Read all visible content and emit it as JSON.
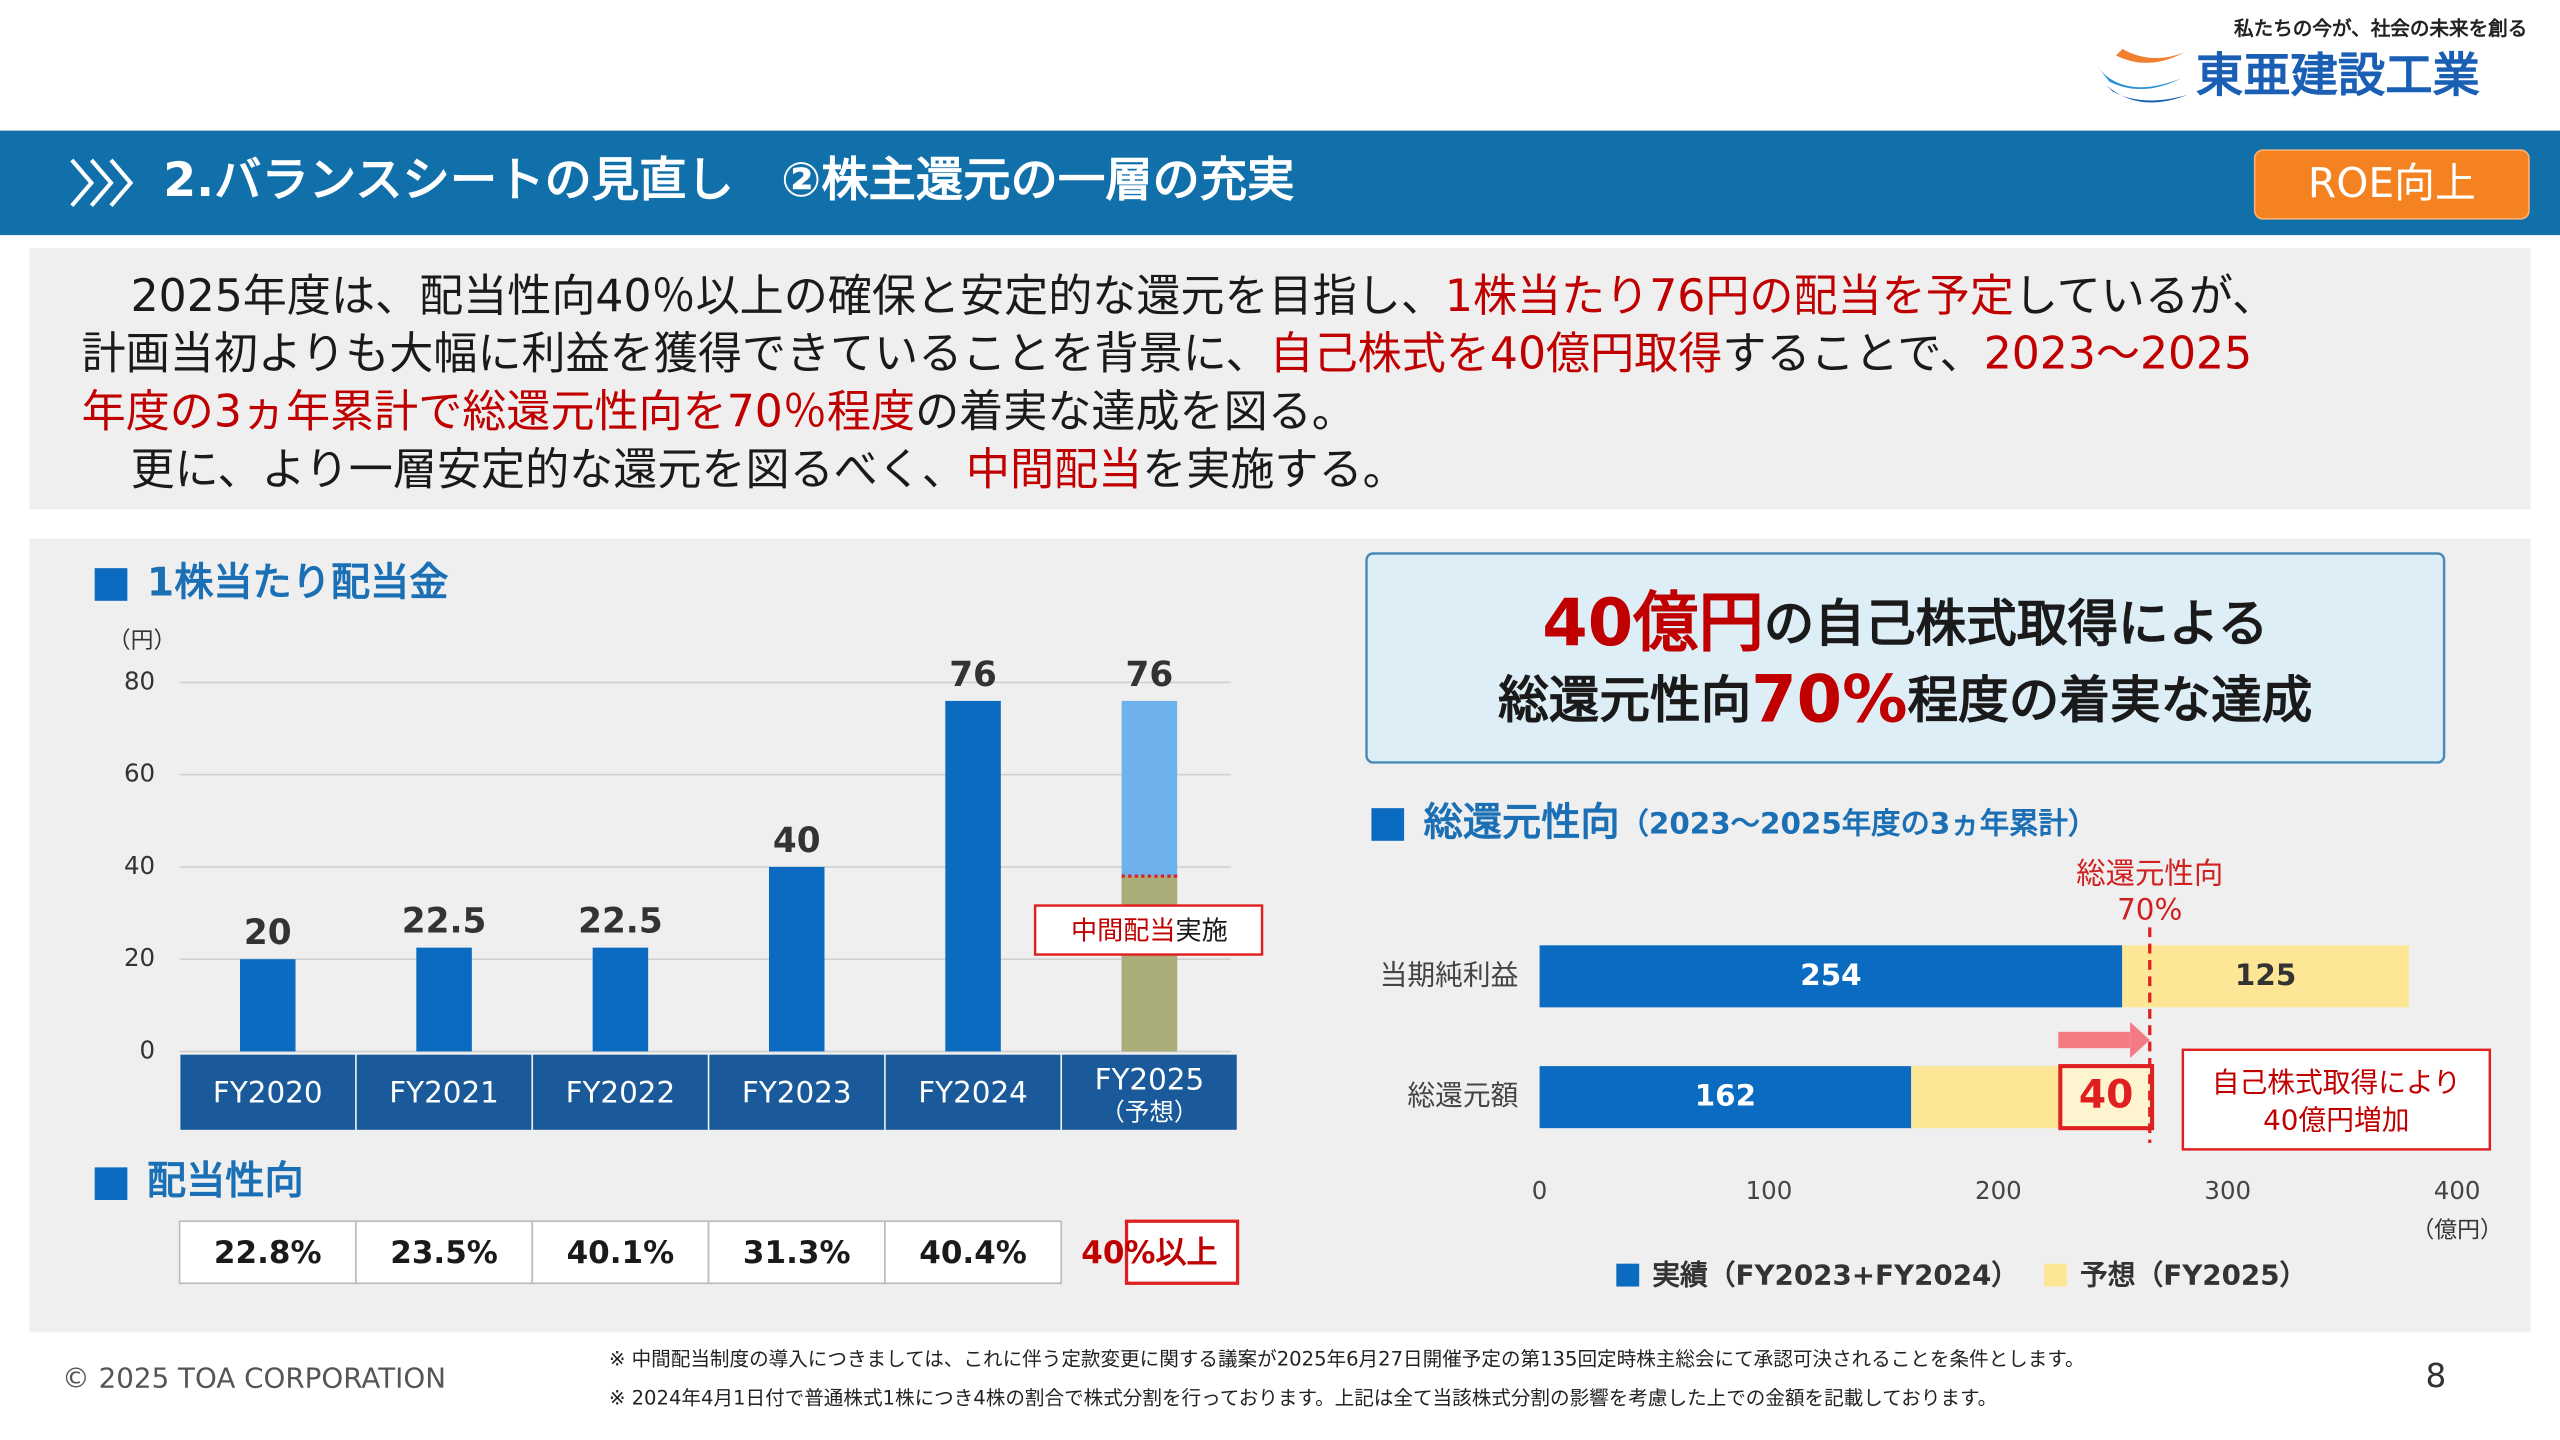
{
  "header": {
    "tagline": "私たちの今が、社会の未来を創る",
    "logo": "東亜建設工業",
    "section_title": "2.バランスシートの見直し　②株主還元の一層の充実",
    "badge": "ROE向上"
  },
  "intro": {
    "lines": [
      {
        "segments": [
          {
            "text": "2025年度は、配当性向40％以上の確保と安定的な還元を目指し、",
            "color": "#1a1a1a"
          },
          {
            "text": "1株当たり76円の配当を予定",
            "color": "#c00000"
          },
          {
            "text": "しているが、",
            "color": "#1a1a1a"
          }
        ]
      },
      {
        "segments": [
          {
            "text": "計画当初よりも大幅に利益を獲得できていることを背景に、",
            "color": "#1a1a1a"
          },
          {
            "text": "自己株式を40億円取得",
            "color": "#c00000"
          },
          {
            "text": "することで、",
            "color": "#1a1a1a"
          },
          {
            "text": "2023～2025",
            "color": "#c00000"
          }
        ]
      },
      {
        "segments": [
          {
            "text": "年度の3ヵ年累計で総還元性向を70％程度",
            "color": "#c00000"
          },
          {
            "text": "の着実な達成を図る。",
            "color": "#1a1a1a"
          }
        ]
      },
      {
        "segments": [
          {
            "text": "更に、より一層安定的な還元を図るべく、",
            "color": "#1a1a1a"
          },
          {
            "text": "中間配当",
            "color": "#c00000"
          },
          {
            "text": "を実施する。",
            "color": "#1a1a1a"
          }
        ]
      }
    ]
  },
  "callout": {
    "lines": [
      {
        "segments": [
          {
            "text": "40億円",
            "color": "#c00000"
          },
          {
            "text": "の自己株式取得による",
            "color": "#1a1a1a"
          }
        ]
      },
      {
        "segments": [
          {
            "text": "総還元性向",
            "color": "#1a1a1a"
          },
          {
            "text": "70%",
            "color": "#c00000"
          },
          {
            "text": "程度の着実な達成",
            "color": "#1a1a1a"
          }
        ]
      }
    ]
  },
  "chart_data": [
    {
      "type": "bar",
      "title": "1株当たり配当金",
      "y_unit": "（円）",
      "categories": [
        "FY2020",
        "FY2021",
        "FY2022",
        "FY2023",
        "FY2024",
        "FY2025"
      ],
      "forecast_label": "（予想）",
      "values": [
        20,
        22.5,
        22.5,
        40,
        76,
        76
      ],
      "colors": [
        "#0a6bc1",
        "#0a6bc1",
        "#0a6bc1",
        "#0a6bc1",
        "#0a6bc1",
        "#6db2ec"
      ],
      "interim_values": [
        null,
        null,
        null,
        null,
        null,
        38
      ],
      "interim_color": "#aaad77",
      "interim_label": [
        "中間配当",
        "実施"
      ],
      "ylim": [
        0,
        80
      ],
      "yticks": [
        0,
        20,
        40,
        60,
        80
      ],
      "grid": true,
      "payout": {
        "title": "配当性向",
        "values": [
          "22.8%",
          "23.5%",
          "40.1%",
          "31.3%",
          "40.4%",
          "40%以上"
        ]
      }
    },
    {
      "type": "stacked-barh",
      "title": "総還元性向",
      "subtitle": "（2023～2025年度の3ヵ年累計）",
      "categories": [
        "当期純利益",
        "総還元額"
      ],
      "series": [
        {
          "name": "実績（FY2023+FY2024）",
          "color": "#0a6bc1",
          "values": [
            254,
            162
          ],
          "value_labels": [
            "254",
            "162"
          ]
        },
        {
          "name": "予想（FY2025）",
          "color": "#fde796",
          "values": [
            125,
            65
          ],
          "value_labels": [
            "125",
            null
          ]
        },
        {
          "color": "#e02020",
          "values": [
            null,
            40
          ],
          "value_labels": [
            null,
            "40"
          ]
        }
      ],
      "xlim": [
        0,
        400
      ],
      "xticks": [
        0,
        100,
        200,
        300,
        400
      ],
      "x_unit": "（億円）",
      "reference": {
        "value": 266,
        "labels": [
          "総還元性向",
          "70%"
        ]
      },
      "note": [
        "自己株式取得により",
        "40億円増加"
      ]
    }
  ],
  "footer": {
    "copyright": "© 2025 TOA CORPORATION",
    "notes": [
      "※ 中間配当制度の導入につきましては、これに伴う定款変更に関する議案が2025年6月27日開催予定の第135回定時株主総会にて承認可決されることを条件とします。",
      "※ 2024年4月1日付で普通株式1株につき4株の割合で株式分割を行っております。上記は全て当該株式分割の影響を考慮した上での金額を記載しております。"
    ],
    "page": "8"
  }
}
